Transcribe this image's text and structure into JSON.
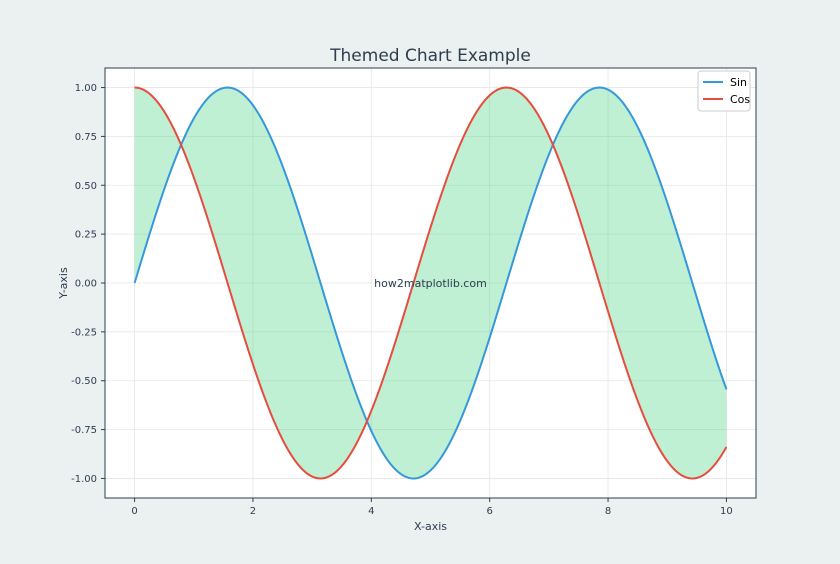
{
  "chart_data": {
    "type": "line",
    "title": "Themed Chart Example",
    "xlabel": "X-axis",
    "ylabel": "Y-axis",
    "xlim": [
      -0.5,
      10.5
    ],
    "ylim": [
      -1.1,
      1.1
    ],
    "x_ticks": [
      0,
      2,
      4,
      6,
      8,
      10
    ],
    "x_tick_labels": [
      "0",
      "2",
      "4",
      "6",
      "8",
      "10"
    ],
    "y_ticks": [
      1.0,
      0.75,
      0.5,
      0.25,
      0.0,
      -0.25,
      -0.5,
      -0.75,
      -1.0
    ],
    "y_tick_labels": [
      "1.00",
      "0.75",
      "0.50",
      "0.25",
      "0.00",
      "-0.25",
      "-0.50",
      "-0.75",
      "-1.00"
    ],
    "grid": true,
    "legend_position": "top-right",
    "x_domain": [
      0,
      10
    ],
    "series": [
      {
        "name": "Sin",
        "function": "sin",
        "color": "#3498db"
      },
      {
        "name": "Cos",
        "function": "cos",
        "color": "#e74c3c"
      }
    ],
    "fill_between": {
      "series": [
        "Sin",
        "Cos"
      ],
      "color": "#2ecc71",
      "opacity": 0.3
    },
    "annotations": [
      {
        "text": "how2matplotlib.com",
        "x": 5,
        "y": 0
      }
    ]
  },
  "colors": {
    "page_background": "#ebf0f0",
    "plot_background": "#ffffff",
    "text": "#2c3e50",
    "grid": "#e6e6e6"
  }
}
